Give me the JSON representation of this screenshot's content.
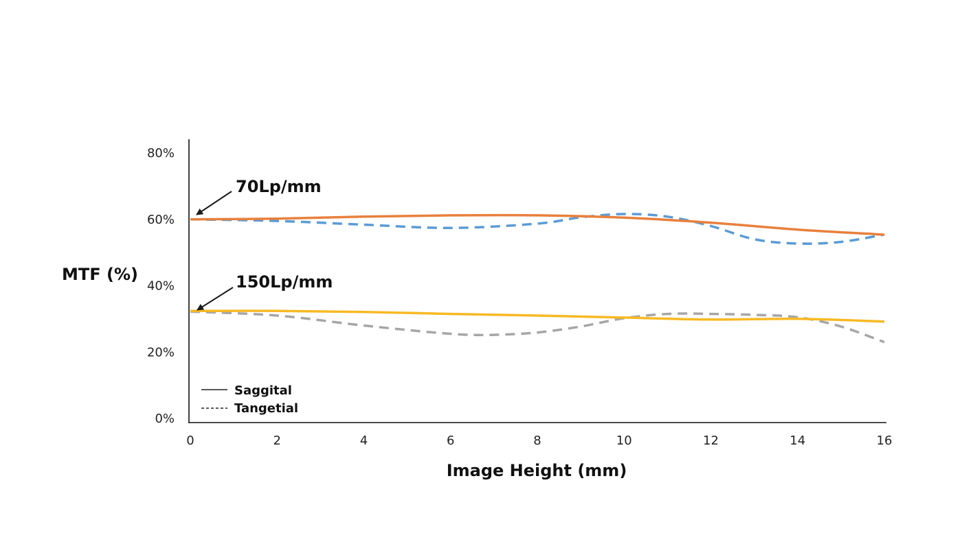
{
  "chart_data": {
    "type": "line",
    "title": "",
    "xlabel": "Image Height (mm)",
    "ylabel": "MTF (%)",
    "xlim": [
      0,
      16
    ],
    "ylim": [
      0,
      80
    ],
    "x_ticks": [
      "0",
      "2",
      "4",
      "6",
      "8",
      "10",
      "12",
      "14",
      "16"
    ],
    "y_ticks": [
      "0%",
      "20%",
      "40%",
      "60%",
      "80%"
    ],
    "grid": false,
    "legend_position": "bottom-left",
    "legend": [
      {
        "label": "Saggital",
        "style": "solid"
      },
      {
        "label": "Tangetial",
        "style": "dashed"
      }
    ],
    "annotations": [
      {
        "text": "70Lp/mm",
        "points_to": {
          "x": 0,
          "y": 60
        }
      },
      {
        "text": "150Lp/mm",
        "points_to": {
          "x": 0,
          "y": 32
        }
      }
    ],
    "series": [
      {
        "group": "70Lp/mm",
        "style": "solid",
        "color": "#e8803d",
        "x": [
          0,
          2,
          4,
          6,
          8,
          10,
          12,
          14,
          16
        ],
        "y": [
          59.8,
          60.0,
          60.6,
          61.0,
          61.0,
          60.3,
          58.8,
          56.7,
          55.2
        ]
      },
      {
        "group": "70Lp/mm",
        "style": "dashed",
        "color": "#5b9bd5",
        "x": [
          0,
          2,
          4,
          6,
          8,
          9,
          10,
          11,
          12,
          13,
          14,
          15,
          16
        ],
        "y": [
          59.8,
          59.3,
          58.2,
          57.2,
          58.5,
          60.4,
          61.4,
          60.6,
          57.8,
          53.8,
          52.5,
          53.0,
          55.2
        ]
      },
      {
        "group": "150Lp/mm",
        "style": "solid",
        "color": "#f7b924",
        "x": [
          0,
          2,
          4,
          6,
          8,
          10,
          12,
          14,
          16
        ],
        "y": [
          32.2,
          32.2,
          31.9,
          31.3,
          30.8,
          30.2,
          29.6,
          29.8,
          29.0
        ]
      },
      {
        "group": "150Lp/mm",
        "style": "dashed",
        "color": "#a6a6a6",
        "x": [
          0,
          2,
          4,
          6,
          7,
          8,
          9,
          10,
          11,
          12,
          13,
          14,
          15,
          16
        ],
        "y": [
          32.0,
          30.8,
          27.8,
          25.3,
          25.0,
          25.7,
          27.5,
          30.0,
          31.3,
          31.3,
          31.0,
          30.3,
          27.5,
          22.8
        ]
      }
    ]
  }
}
